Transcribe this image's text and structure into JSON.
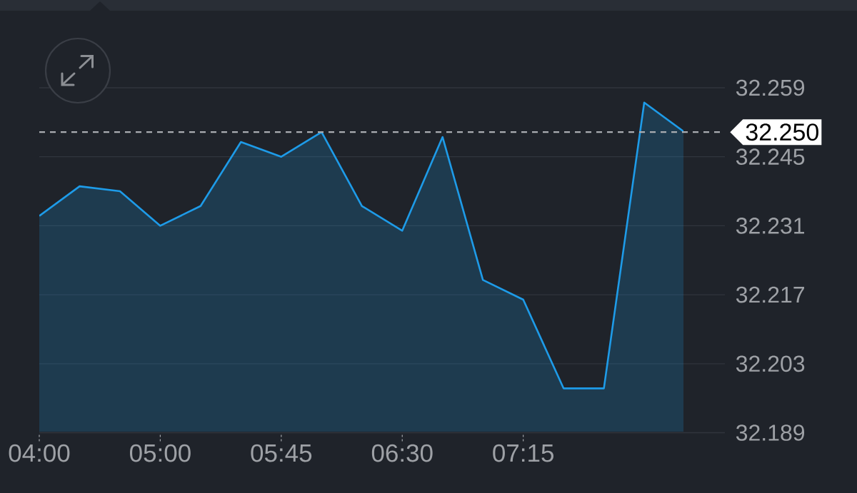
{
  "chart_data": {
    "type": "area",
    "categories": [
      "04:00",
      null,
      null,
      "05:00",
      null,
      null,
      "05:45",
      null,
      null,
      "06:30",
      null,
      null,
      "07:15",
      null,
      null,
      null,
      null
    ],
    "series": [
      {
        "color": "#1e9be8",
        "values": [
          32.233,
          32.239,
          32.238,
          32.231,
          32.235,
          32.248,
          32.245,
          32.25,
          32.235,
          32.23,
          32.249,
          32.22,
          32.216,
          32.198,
          32.198,
          32.256,
          32.25
        ]
      }
    ],
    "ylim": [
      32.189,
      32.259
    ],
    "yticks": [
      32.189,
      32.203,
      32.217,
      32.231,
      32.245,
      32.259
    ],
    "grid": "y",
    "ref_lines": [
      {
        "axis": "y",
        "value": 32.25,
        "label": "32.250",
        "color": "#a9acb1",
        "line_style": "dashed"
      }
    ]
  }
}
